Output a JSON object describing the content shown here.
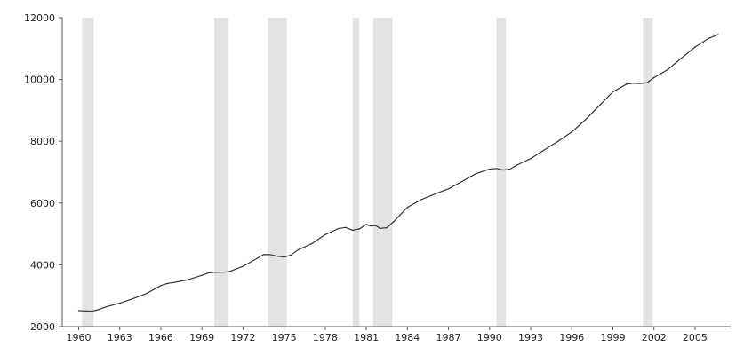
{
  "chart_data": {
    "type": "line",
    "title": "",
    "xlabel": "",
    "ylabel": "",
    "xlim": [
      1958.8,
      2007.6
    ],
    "ylim": [
      2000,
      12000
    ],
    "grid": false,
    "legend": "none",
    "colors": {
      "line": "#333333",
      "shading": "#e3e3e3",
      "axis": "#555555"
    },
    "y_ticks": [
      2000,
      4000,
      6000,
      8000,
      10000,
      12000
    ],
    "y_tick_labels": [
      "2000",
      "4000",
      "6000",
      "8000",
      "10000",
      "12000"
    ],
    "x_ticks": [
      1960,
      1963,
      1966,
      1969,
      1972,
      1975,
      1978,
      1981,
      1984,
      1987,
      1990,
      1993,
      1996,
      1999,
      2002,
      2005
    ],
    "x_tick_labels": [
      "1960",
      "1963",
      "1966",
      "1969",
      "1972",
      "1975",
      "1978",
      "1981",
      "1984",
      "1987",
      "1990",
      "1993",
      "1996",
      "1999",
      "2002",
      "2005"
    ],
    "shaded_periods": [
      [
        1960.25,
        1961.1
      ],
      [
        1969.9,
        1970.9
      ],
      [
        1973.8,
        1975.2
      ],
      [
        1980.0,
        1980.5
      ],
      [
        1981.5,
        1982.9
      ],
      [
        1990.5,
        1991.2
      ],
      [
        2001.2,
        2001.9
      ]
    ],
    "series": [
      {
        "x": [
          1960.0,
          1960.5,
          1961.0,
          1961.5,
          1962.0,
          1963.0,
          1964.0,
          1965.0,
          1966.0,
          1966.5,
          1967.0,
          1968.0,
          1969.0,
          1969.5,
          1970.0,
          1970.5,
          1971.0,
          1972.0,
          1973.0,
          1973.5,
          1974.0,
          1974.5,
          1975.0,
          1975.5,
          1976.0,
          1977.0,
          1978.0,
          1979.0,
          1979.5,
          1980.0,
          1980.5,
          1981.0,
          1981.3,
          1981.7,
          1982.0,
          1982.5,
          1983.0,
          1984.0,
          1985.0,
          1986.0,
          1987.0,
          1988.0,
          1989.0,
          1990.0,
          1990.5,
          1991.0,
          1991.5,
          1992.0,
          1993.0,
          1994.0,
          1995.0,
          1996.0,
          1997.0,
          1998.0,
          1999.0,
          2000.0,
          2000.5,
          2001.0,
          2001.5,
          2002.0,
          2003.0,
          2004.0,
          2005.0,
          2006.0,
          2006.7
        ],
        "y": [
          2520,
          2510,
          2500,
          2560,
          2640,
          2760,
          2910,
          3080,
          3330,
          3400,
          3430,
          3520,
          3660,
          3740,
          3760,
          3760,
          3780,
          3950,
          4200,
          4330,
          4330,
          4280,
          4250,
          4320,
          4480,
          4680,
          4980,
          5180,
          5210,
          5120,
          5160,
          5310,
          5260,
          5270,
          5180,
          5200,
          5400,
          5860,
          6110,
          6290,
          6460,
          6700,
          6950,
          7100,
          7120,
          7070,
          7100,
          7230,
          7440,
          7720,
          8000,
          8300,
          8700,
          9150,
          9600,
          9850,
          9880,
          9870,
          9900,
          10060,
          10320,
          10690,
          11050,
          11330,
          11460
        ]
      }
    ]
  }
}
